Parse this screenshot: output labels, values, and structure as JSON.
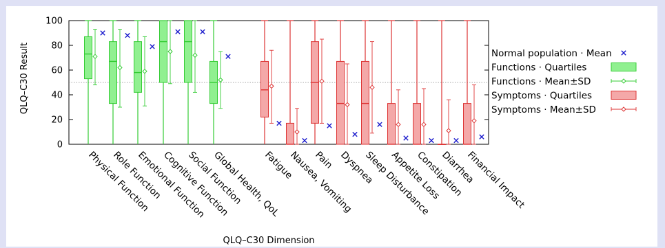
{
  "chart_data": {
    "type": "boxplot",
    "xlabel": "QLQ–C30 Dimension",
    "ylabel": "QLQ–C30 Result",
    "ylim": [
      0,
      100
    ],
    "yticks": [
      0,
      20,
      40,
      60,
      80,
      100
    ],
    "reference_line": 50,
    "grid": false,
    "legend_position": "right",
    "legend": [
      "Normal population · Mean",
      "Functions · Quartiles",
      "Functions · Mean±SD",
      "Symptoms · Quartiles",
      "Symptoms · Mean±SD"
    ],
    "colors": {
      "functions_fill": "#90f090",
      "functions_line": "#33cc33",
      "symptoms_fill": "#f4a8a8",
      "symptoms_line": "#dd3333",
      "normal_marker": "#1a1acc"
    },
    "categories": [
      {
        "name": "Physical Function",
        "group": "functions",
        "min": 0,
        "q1": 53,
        "median": 73,
        "q3": 87,
        "max": 100,
        "mean": 71,
        "sd_low": 48,
        "sd_high": 93,
        "normal_mean": 90
      },
      {
        "name": "Role Function",
        "group": "functions",
        "min": 0,
        "q1": 33,
        "median": 67,
        "q3": 83,
        "max": 100,
        "mean": 62,
        "sd_low": 30,
        "sd_high": 93,
        "normal_mean": 88
      },
      {
        "name": "Emotional Function",
        "group": "functions",
        "min": 0,
        "q1": 42,
        "median": 58,
        "q3": 83,
        "max": 100,
        "mean": 59,
        "sd_low": 31,
        "sd_high": 87,
        "normal_mean": 79
      },
      {
        "name": "Cognitive Function",
        "group": "functions",
        "min": 0,
        "q1": 50,
        "median": 83,
        "q3": 100,
        "max": 100,
        "mean": 75,
        "sd_low": 49,
        "sd_high": 100,
        "normal_mean": 91
      },
      {
        "name": "Social Function",
        "group": "functions",
        "min": 0,
        "q1": 50,
        "median": 83,
        "q3": 100,
        "max": 100,
        "mean": 72,
        "sd_low": 42,
        "sd_high": 100,
        "normal_mean": 91
      },
      {
        "name": "Global Health, QoL",
        "group": "functions",
        "min": 0,
        "q1": 33,
        "median": 50,
        "q3": 67,
        "max": 100,
        "mean": 52,
        "sd_low": 29,
        "sd_high": 75,
        "normal_mean": 71
      },
      {
        "name": "Fatigue",
        "group": "symptoms",
        "min": 0,
        "q1": 22,
        "median": 44,
        "q3": 67,
        "max": 100,
        "mean": 47,
        "sd_low": 17,
        "sd_high": 76,
        "normal_mean": 17
      },
      {
        "name": "Nausea, Vomiting",
        "group": "symptoms",
        "min": 0,
        "q1": 0,
        "median": 0,
        "q3": 17,
        "max": 100,
        "mean": 10,
        "sd_low": 0,
        "sd_high": 29,
        "normal_mean": 3
      },
      {
        "name": "Pain",
        "group": "symptoms",
        "min": 0,
        "q1": 17,
        "median": 50,
        "q3": 83,
        "max": 100,
        "mean": 51,
        "sd_low": 17,
        "sd_high": 85,
        "normal_mean": 15
      },
      {
        "name": "Dyspnea",
        "group": "symptoms",
        "min": 0,
        "q1": 0,
        "median": 33,
        "q3": 67,
        "max": 100,
        "mean": 32,
        "sd_low": 0,
        "sd_high": 65,
        "normal_mean": 8
      },
      {
        "name": "Sleep Disturbance",
        "group": "symptoms",
        "min": 0,
        "q1": 0,
        "median": 33,
        "q3": 67,
        "max": 100,
        "mean": 46,
        "sd_low": 9,
        "sd_high": 83,
        "normal_mean": 16
      },
      {
        "name": "Appetite Loss",
        "group": "symptoms",
        "min": 0,
        "q1": 0,
        "median": 0,
        "q3": 33,
        "max": 100,
        "mean": 16,
        "sd_low": 0,
        "sd_high": 44,
        "normal_mean": 5
      },
      {
        "name": "Constipation",
        "group": "symptoms",
        "min": 0,
        "q1": 0,
        "median": 0,
        "q3": 33,
        "max": 100,
        "mean": 16,
        "sd_low": 0,
        "sd_high": 45,
        "normal_mean": 3
      },
      {
        "name": "Diarrhea",
        "group": "symptoms",
        "min": 0,
        "q1": 0,
        "median": 0,
        "q3": 0,
        "max": 100,
        "mean": 11,
        "sd_low": 0,
        "sd_high": 36,
        "normal_mean": 3
      },
      {
        "name": "Financial Impact",
        "group": "symptoms",
        "min": 0,
        "q1": 0,
        "median": 0,
        "q3": 33,
        "max": 100,
        "mean": 19,
        "sd_low": 0,
        "sd_high": 48,
        "normal_mean": 6
      }
    ]
  }
}
